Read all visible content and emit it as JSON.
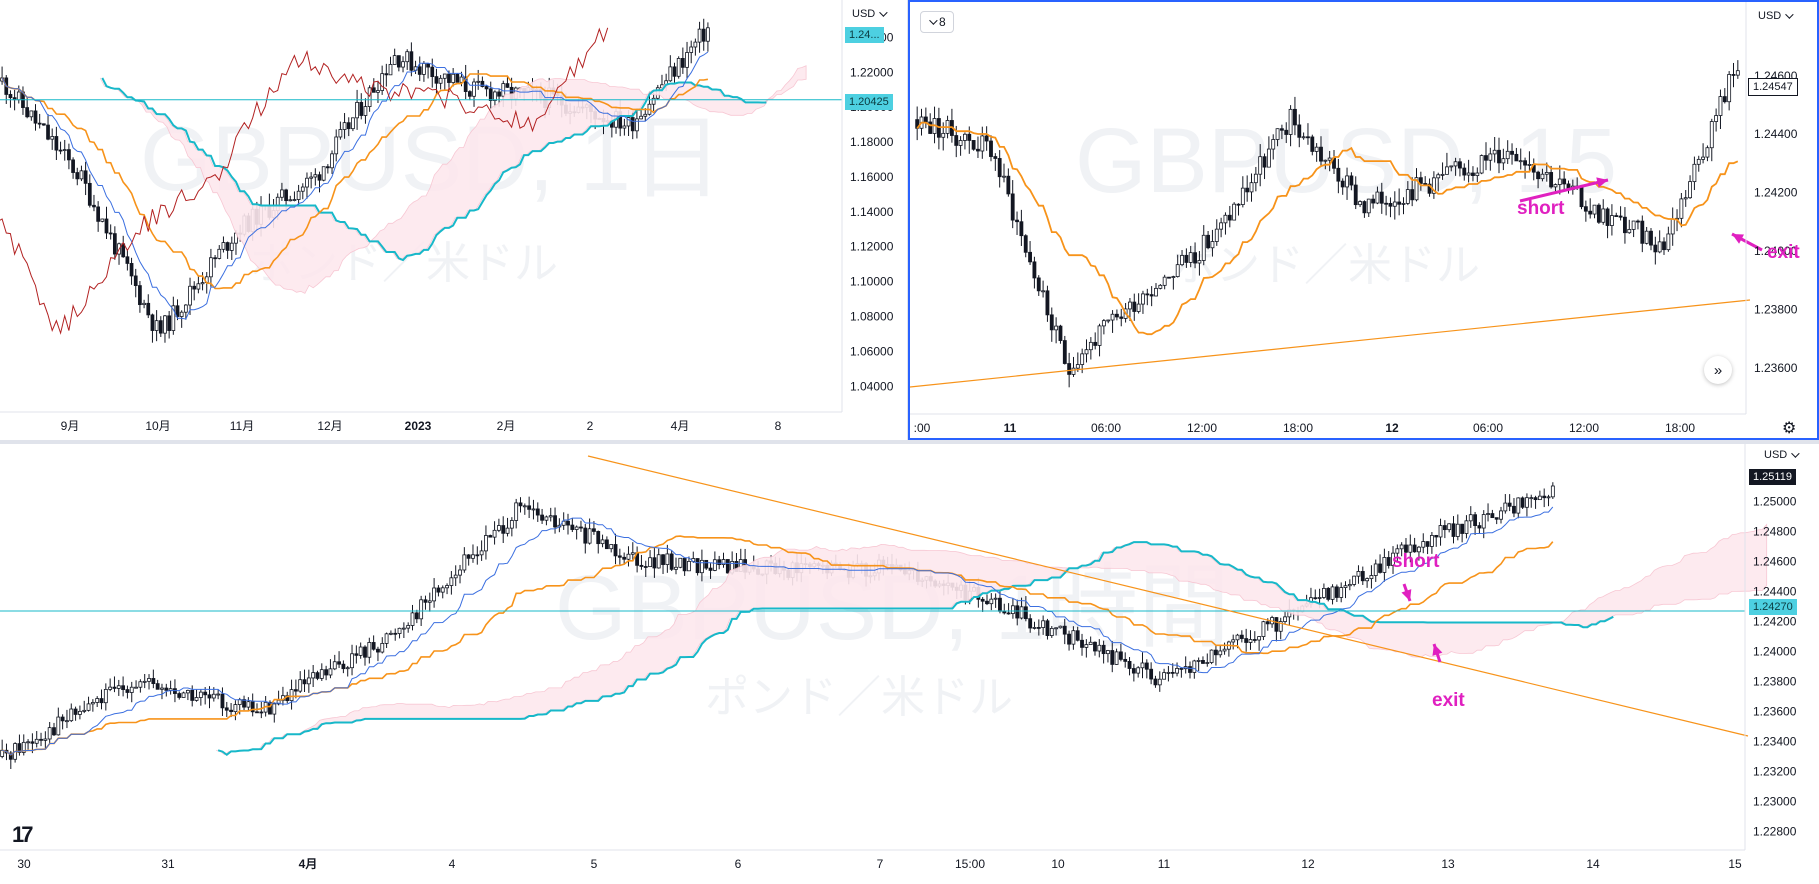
{
  "colors": {
    "bull": "#ffffff",
    "bear": "#131722",
    "kijun": "#f7931a",
    "tenkan": "#3b6fe0",
    "chikou": "#b22222",
    "senkou_b": "#17b8c9",
    "cloud": "#fde8ee",
    "cloud_line": "#f7c2cf",
    "hline": "#17b8c9",
    "trend": "#f7931a",
    "anno": "#e020c0",
    "last_price_bg": "#131722",
    "hline_label_bg": "#4dd0e1",
    "frame_accent": "#2962ff"
  },
  "icons": {
    "interval": "chevron-down-icon",
    "scroll": "double-chevron-right-icon",
    "settings": "gear-icon",
    "logo": "tradingview-logo"
  },
  "panes": {
    "top_left": {
      "currency": "USD",
      "watermark": "GBPUSD, 1日",
      "watermark_sub": "ポンド／米ドル",
      "hline_price": "1.20425",
      "top_badge": "1.24...",
      "price_labels": [
        "1.24000",
        "1.22000",
        "1.20000",
        "1.18000",
        "1.16000",
        "1.14000",
        "1.12000",
        "1.10000",
        "1.08000",
        "1.06000",
        "1.04000"
      ],
      "time_labels": [
        "9月",
        "10月",
        "11月",
        "12月",
        "2023",
        "2月",
        "2",
        "4月",
        "8"
      ]
    },
    "top_right": {
      "currency": "USD",
      "interval": "8",
      "watermark": "GBPUSD, 15",
      "watermark_sub": "ポンド／米ドル",
      "last_price": "1.24547",
      "price_labels": [
        "1.24600",
        "1.24400",
        "1.24200",
        "1.24000",
        "1.23800",
        "1.23600"
      ],
      "time_labels": [
        ":00",
        "11",
        "06:00",
        "12:00",
        "18:00",
        "12",
        "06:00",
        "12:00",
        "18:00"
      ],
      "annotations": {
        "short": "short",
        "exit": "exit"
      },
      "scroll_symbol": "»",
      "settings_symbol": "⚙"
    },
    "bottom": {
      "currency": "USD",
      "watermark": "GBPUSD, 1時間",
      "watermark_sub": "ポンド／米ドル",
      "last_price": "1.25119",
      "hline_price": "1.24270",
      "price_labels": [
        "1.25000",
        "1.24800",
        "1.24600",
        "1.24400",
        "1.24200",
        "1.24000",
        "1.23800",
        "1.23600",
        "1.23400",
        "1.23200",
        "1.23000",
        "1.22800"
      ],
      "time_labels": [
        "30",
        "31",
        "4月",
        "4",
        "5",
        "6",
        "7",
        "15:00",
        "10",
        "11",
        "12",
        "13",
        "14",
        "15"
      ],
      "annotations": {
        "short": "short",
        "exit": "exit"
      },
      "logo_text": "17"
    }
  },
  "chart_data": [
    {
      "type": "candlestick",
      "symbol": "GBPUSD",
      "timeframe": "1日",
      "indicators": [
        "Ichimoku Kinko Hyo"
      ],
      "ylim": [
        1.035,
        1.25
      ],
      "close_path_approx": [
        {
          "x": "8月",
          "y": 1.215
        },
        {
          "x": "9月",
          "y": 1.16
        },
        {
          "x": "9月末",
          "y": 1.07
        },
        {
          "x": "10月",
          "y": 1.13
        },
        {
          "x": "11月",
          "y": 1.16
        },
        {
          "x": "12月",
          "y": 1.23
        },
        {
          "x": "2023",
          "y": 1.21
        },
        {
          "x": "2月",
          "y": 1.205
        },
        {
          "x": "2",
          "y": 1.19
        },
        {
          "x": "4月",
          "y": 1.245
        }
      ],
      "horizontal_line": 1.20425
    },
    {
      "type": "candlestick",
      "symbol": "GBPUSD",
      "timeframe": "15",
      "ylim": [
        1.235,
        1.2475
      ],
      "close_path_approx": [
        {
          "x": "10 18:00",
          "y": 1.2445
        },
        {
          "x": "11 00:00",
          "y": 1.2435
        },
        {
          "x": "11 03:00",
          "y": 1.236
        },
        {
          "x": "11 06:00",
          "y": 1.2385
        },
        {
          "x": "11 12:00",
          "y": 1.2405
        },
        {
          "x": "11 18:00",
          "y": 1.2445
        },
        {
          "x": "12 00:00",
          "y": 1.2415
        },
        {
          "x": "12 06:00",
          "y": 1.2425
        },
        {
          "x": "12 12:00",
          "y": 1.2435
        },
        {
          "x": "12 18:00",
          "y": 1.2415
        },
        {
          "x": "12 21:00",
          "y": 1.2402
        },
        {
          "x": "12 22:00",
          "y": 1.2465
        }
      ],
      "last_price": 1.24547,
      "annotations": [
        "short",
        "exit"
      ]
    },
    {
      "type": "candlestick",
      "symbol": "GBPUSD",
      "timeframe": "1時間",
      "indicators": [
        "Ichimoku Kinko Hyo"
      ],
      "ylim": [
        1.2275,
        1.2525
      ],
      "close_path_approx": [
        {
          "x": "30",
          "y": 1.233
        },
        {
          "x": "31",
          "y": 1.238
        },
        {
          "x": "4月",
          "y": 1.236
        },
        {
          "x": "4",
          "y": 1.241
        },
        {
          "x": "5",
          "y": 1.2495
        },
        {
          "x": "6",
          "y": 1.246
        },
        {
          "x": "7",
          "y": 1.2455
        },
        {
          "x": "15:00",
          "y": 1.2455
        },
        {
          "x": "10",
          "y": 1.242
        },
        {
          "x": "11",
          "y": 1.238
        },
        {
          "x": "12",
          "y": 1.2425
        },
        {
          "x": "13",
          "y": 1.2475
        },
        {
          "x": "13",
          "y": 1.2505
        }
      ],
      "last_price": 1.25119,
      "horizontal_line": 1.2427,
      "annotations": [
        "short",
        "exit"
      ]
    }
  ]
}
